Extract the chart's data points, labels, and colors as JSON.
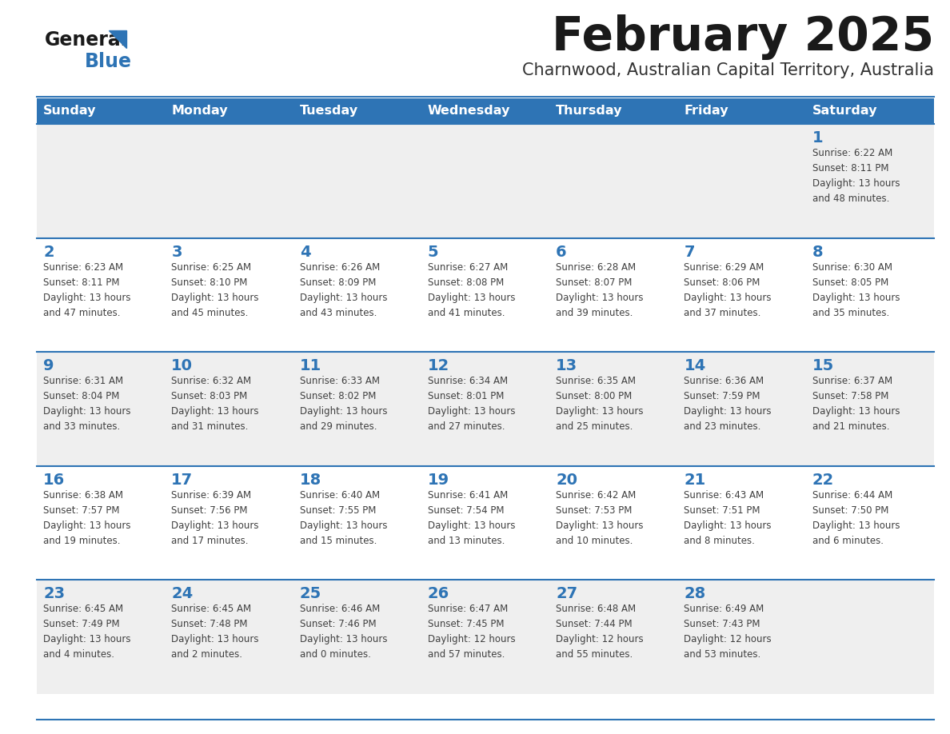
{
  "title": "February 2025",
  "subtitle": "Charnwood, Australian Capital Territory, Australia",
  "header_bg": "#2E74B5",
  "header_text_color": "#FFFFFF",
  "cell_bg_odd": "#EFEFEF",
  "cell_bg_even": "#FFFFFF",
  "day_number_color": "#2E74B5",
  "text_color": "#404040",
  "line_color": "#2E74B5",
  "days_of_week": [
    "Sunday",
    "Monday",
    "Tuesday",
    "Wednesday",
    "Thursday",
    "Friday",
    "Saturday"
  ],
  "calendar_data": [
    [
      {
        "day": "",
        "info": ""
      },
      {
        "day": "",
        "info": ""
      },
      {
        "day": "",
        "info": ""
      },
      {
        "day": "",
        "info": ""
      },
      {
        "day": "",
        "info": ""
      },
      {
        "day": "",
        "info": ""
      },
      {
        "day": "1",
        "info": "Sunrise: 6:22 AM\nSunset: 8:11 PM\nDaylight: 13 hours\nand 48 minutes."
      }
    ],
    [
      {
        "day": "2",
        "info": "Sunrise: 6:23 AM\nSunset: 8:11 PM\nDaylight: 13 hours\nand 47 minutes."
      },
      {
        "day": "3",
        "info": "Sunrise: 6:25 AM\nSunset: 8:10 PM\nDaylight: 13 hours\nand 45 minutes."
      },
      {
        "day": "4",
        "info": "Sunrise: 6:26 AM\nSunset: 8:09 PM\nDaylight: 13 hours\nand 43 minutes."
      },
      {
        "day": "5",
        "info": "Sunrise: 6:27 AM\nSunset: 8:08 PM\nDaylight: 13 hours\nand 41 minutes."
      },
      {
        "day": "6",
        "info": "Sunrise: 6:28 AM\nSunset: 8:07 PM\nDaylight: 13 hours\nand 39 minutes."
      },
      {
        "day": "7",
        "info": "Sunrise: 6:29 AM\nSunset: 8:06 PM\nDaylight: 13 hours\nand 37 minutes."
      },
      {
        "day": "8",
        "info": "Sunrise: 6:30 AM\nSunset: 8:05 PM\nDaylight: 13 hours\nand 35 minutes."
      }
    ],
    [
      {
        "day": "9",
        "info": "Sunrise: 6:31 AM\nSunset: 8:04 PM\nDaylight: 13 hours\nand 33 minutes."
      },
      {
        "day": "10",
        "info": "Sunrise: 6:32 AM\nSunset: 8:03 PM\nDaylight: 13 hours\nand 31 minutes."
      },
      {
        "day": "11",
        "info": "Sunrise: 6:33 AM\nSunset: 8:02 PM\nDaylight: 13 hours\nand 29 minutes."
      },
      {
        "day": "12",
        "info": "Sunrise: 6:34 AM\nSunset: 8:01 PM\nDaylight: 13 hours\nand 27 minutes."
      },
      {
        "day": "13",
        "info": "Sunrise: 6:35 AM\nSunset: 8:00 PM\nDaylight: 13 hours\nand 25 minutes."
      },
      {
        "day": "14",
        "info": "Sunrise: 6:36 AM\nSunset: 7:59 PM\nDaylight: 13 hours\nand 23 minutes."
      },
      {
        "day": "15",
        "info": "Sunrise: 6:37 AM\nSunset: 7:58 PM\nDaylight: 13 hours\nand 21 minutes."
      }
    ],
    [
      {
        "day": "16",
        "info": "Sunrise: 6:38 AM\nSunset: 7:57 PM\nDaylight: 13 hours\nand 19 minutes."
      },
      {
        "day": "17",
        "info": "Sunrise: 6:39 AM\nSunset: 7:56 PM\nDaylight: 13 hours\nand 17 minutes."
      },
      {
        "day": "18",
        "info": "Sunrise: 6:40 AM\nSunset: 7:55 PM\nDaylight: 13 hours\nand 15 minutes."
      },
      {
        "day": "19",
        "info": "Sunrise: 6:41 AM\nSunset: 7:54 PM\nDaylight: 13 hours\nand 13 minutes."
      },
      {
        "day": "20",
        "info": "Sunrise: 6:42 AM\nSunset: 7:53 PM\nDaylight: 13 hours\nand 10 minutes."
      },
      {
        "day": "21",
        "info": "Sunrise: 6:43 AM\nSunset: 7:51 PM\nDaylight: 13 hours\nand 8 minutes."
      },
      {
        "day": "22",
        "info": "Sunrise: 6:44 AM\nSunset: 7:50 PM\nDaylight: 13 hours\nand 6 minutes."
      }
    ],
    [
      {
        "day": "23",
        "info": "Sunrise: 6:45 AM\nSunset: 7:49 PM\nDaylight: 13 hours\nand 4 minutes."
      },
      {
        "day": "24",
        "info": "Sunrise: 6:45 AM\nSunset: 7:48 PM\nDaylight: 13 hours\nand 2 minutes."
      },
      {
        "day": "25",
        "info": "Sunrise: 6:46 AM\nSunset: 7:46 PM\nDaylight: 13 hours\nand 0 minutes."
      },
      {
        "day": "26",
        "info": "Sunrise: 6:47 AM\nSunset: 7:45 PM\nDaylight: 12 hours\nand 57 minutes."
      },
      {
        "day": "27",
        "info": "Sunrise: 6:48 AM\nSunset: 7:44 PM\nDaylight: 12 hours\nand 55 minutes."
      },
      {
        "day": "28",
        "info": "Sunrise: 6:49 AM\nSunset: 7:43 PM\nDaylight: 12 hours\nand 53 minutes."
      },
      {
        "day": "",
        "info": ""
      }
    ]
  ]
}
